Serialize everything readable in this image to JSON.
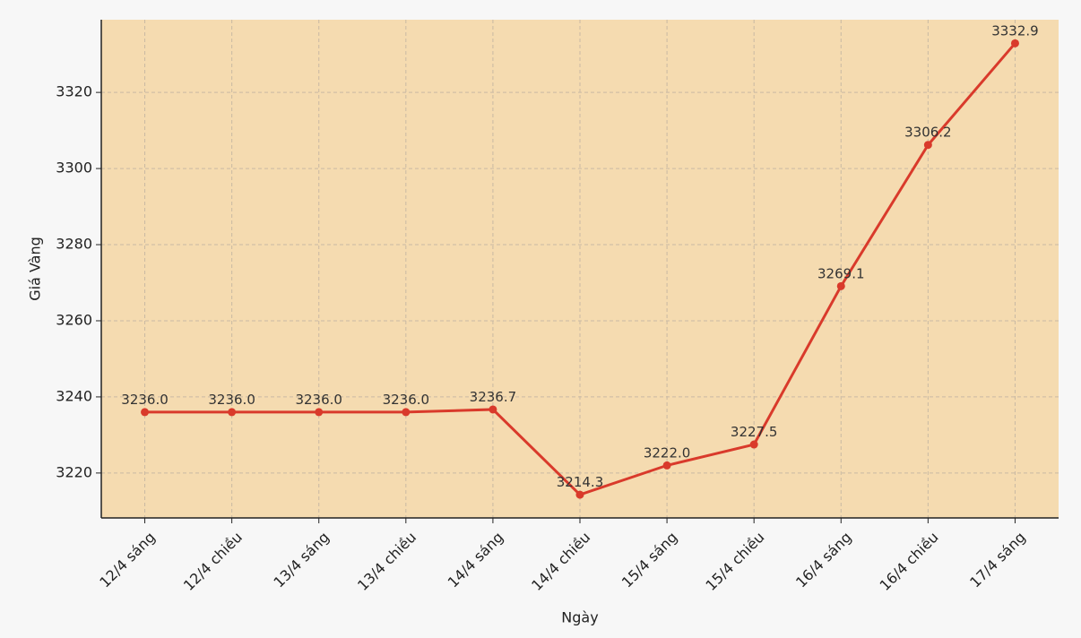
{
  "chart_data": {
    "type": "line",
    "x_label": "Ngày",
    "y_label": "Giá Vàng",
    "categories": [
      "12/4 sáng",
      "12/4 chiều",
      "13/4 sáng",
      "13/4 chiều",
      "14/4 sáng",
      "14/4 chiều",
      "15/4 sáng",
      "15/4 chiều",
      "16/4 sáng",
      "16/4 chiều",
      "17/4 sáng"
    ],
    "values": [
      3236,
      3236,
      3236,
      3236,
      3236.7,
      3214.3,
      3222,
      3227.5,
      3269.1,
      3306.2,
      3332.9
    ],
    "value_labels": [
      "3236.0",
      "3236.0",
      "3236.0",
      "3236.0",
      "3236.7",
      "3214.3",
      "3222.0",
      "3227.5",
      "3269.1",
      "3306.2",
      "3332.9"
    ],
    "color": "#d93a2b",
    "ylim": [
      3208.2,
      3339.1
    ],
    "yticks": [
      3220,
      3240,
      3260,
      3280,
      3300,
      3320
    ],
    "grid": true
  }
}
